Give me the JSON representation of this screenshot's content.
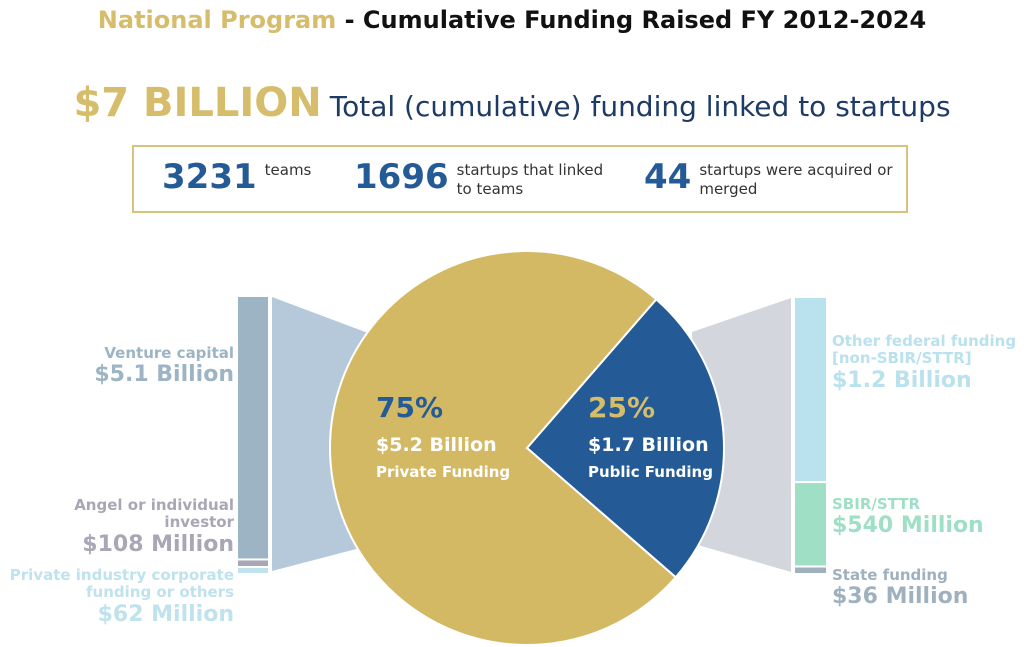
{
  "header": {
    "title_highlight": "National Program",
    "title_rest": " - Cumulative Funding Raised FY 2012-2024"
  },
  "headline": {
    "amount": "$7 BILLION",
    "text": "Total (cumulative) funding linked to startups"
  },
  "stats": [
    {
      "number": "3231",
      "label": "teams"
    },
    {
      "number": "1696",
      "label": "startups that linked to teams"
    },
    {
      "number": "44",
      "label": "startups were acquired or merged"
    }
  ],
  "colors": {
    "private": "#d4b965",
    "public": "#245b96",
    "title_accent": "#d6bd6c"
  },
  "chart_data": [
    {
      "type": "pie",
      "slices": [
        {
          "percent_label": "75%",
          "value": 75,
          "amount": "$5.2 Billion",
          "name": "Private Funding",
          "color": "#d4b965"
        },
        {
          "percent_label": "25%",
          "value": 25,
          "amount": "$1.7 Billion",
          "name": "Public Funding",
          "color": "#245b96"
        }
      ]
    },
    {
      "type": "bar",
      "stacked": true,
      "parent": "Private Funding",
      "segments": [
        {
          "name": "Venture capital",
          "amount": "$5.1 Billion",
          "value_millions": 5100,
          "color": "#9db4c4"
        },
        {
          "name": "Angel or individual investor",
          "amount": "$108 Million",
          "value_millions": 108,
          "color": "#a9a7b5"
        },
        {
          "name": "Private industry corporate funding or others",
          "amount": "$62 Million",
          "value_millions": 62,
          "color": "#bfe2ec"
        }
      ]
    },
    {
      "type": "bar",
      "stacked": true,
      "parent": "Public Funding",
      "segments": [
        {
          "name": "Other federal funding [non-SBIR/STTR]",
          "amount": "$1.2 Billion",
          "value_millions": 1200,
          "color": "#b9e1ee"
        },
        {
          "name": "SBIR/STTR",
          "amount": "$540 Million",
          "value_millions": 540,
          "color": "#9fdfc6"
        },
        {
          "name": "State funding",
          "amount": "$36 Million",
          "value_millions": 36,
          "color": "#9fb1bf"
        }
      ]
    }
  ]
}
